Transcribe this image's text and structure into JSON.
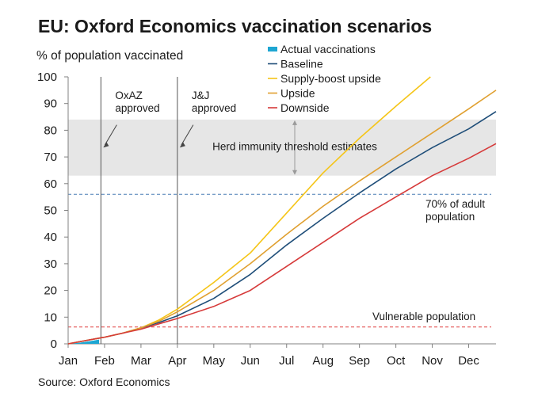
{
  "colors": {
    "actual": "#1ea6d2",
    "baseline": "#1f4e79",
    "supply_boost": "#f5c518",
    "upside": "#e0a030",
    "downside": "#d63a3a",
    "herd_band": "#e6e6e6",
    "adult_line": "#4a7fb5",
    "vulnerable_line": "#e04040"
  },
  "chart_data": {
    "type": "line",
    "title": "EU: Oxford Economics vaccination scenarios",
    "ylabel": "% of population vaccinated",
    "xlabel": "",
    "source": "Source: Oxford Economics",
    "x_ticks": [
      "Jan",
      "Feb",
      "Mar",
      "Apr",
      "May",
      "Jun",
      "Jul",
      "Aug",
      "Sep",
      "Oct",
      "Nov",
      "Dec"
    ],
    "y_ticks": [
      0,
      10,
      20,
      30,
      40,
      50,
      60,
      70,
      80,
      90,
      100
    ],
    "xlim": [
      0,
      11.75
    ],
    "ylim": [
      0,
      100
    ],
    "series": [
      {
        "name": "Actual vaccinations",
        "key": "actual",
        "kind": "area",
        "x": [
          0,
          0.3,
          0.6,
          0.85
        ],
        "y": [
          0,
          0.4,
          1.0,
          1.6
        ]
      },
      {
        "name": "Baseline",
        "key": "baseline",
        "x": [
          0,
          0.6,
          1,
          1.5,
          2,
          2.5,
          3,
          4,
          5,
          6,
          7,
          8,
          9,
          10,
          11,
          11.75
        ],
        "y": [
          0,
          1.5,
          2.5,
          4,
          6,
          8,
          10.5,
          17,
          26,
          37,
          47,
          56.5,
          65.5,
          73.5,
          80.5,
          87
        ]
      },
      {
        "name": "Supply-boost upside",
        "key": "supply_boost",
        "x": [
          0,
          0.6,
          1,
          1.5,
          2,
          2.5,
          3,
          4,
          5,
          6,
          7,
          8,
          9,
          9.95
        ],
        "y": [
          0,
          1.5,
          2.5,
          4,
          6,
          9,
          13,
          23,
          34,
          49,
          64,
          77,
          89,
          100
        ]
      },
      {
        "name": "Upside",
        "key": "upside",
        "x": [
          0,
          0.6,
          1,
          1.5,
          2,
          2.5,
          3,
          4,
          5,
          6,
          7,
          8,
          9,
          10,
          11,
          11.75
        ],
        "y": [
          0,
          1.5,
          2.5,
          4,
          6,
          8.5,
          12,
          20,
          30,
          41,
          51.5,
          61,
          70,
          79,
          88,
          95
        ]
      },
      {
        "name": "Downside",
        "key": "downside",
        "x": [
          0,
          0.6,
          1,
          1.5,
          2,
          2.5,
          3,
          4,
          5,
          6,
          7,
          8,
          9,
          10,
          11,
          11.75
        ],
        "y": [
          0,
          1.5,
          2.5,
          4,
          5.5,
          7.5,
          9.5,
          14,
          20,
          29,
          38,
          47,
          55,
          63,
          69.5,
          75
        ]
      }
    ],
    "herd_immunity_band": {
      "y_min": 63,
      "y_max": 84,
      "label": "Herd immunity threshold estimates"
    },
    "reference_lines": [
      {
        "key": "adult",
        "y": 56,
        "label_lines": [
          "70% of adult",
          "population"
        ]
      },
      {
        "key": "vulnerable",
        "y": 6.3,
        "label_lines": [
          "Vulnerable population"
        ]
      }
    ],
    "events": [
      {
        "x": 0.9,
        "label_lines": [
          "OxAZ",
          "approved"
        ]
      },
      {
        "x": 3.0,
        "label_lines": [
          "J&J",
          "approved"
        ]
      }
    ],
    "legend": {
      "position": "top-right"
    }
  }
}
